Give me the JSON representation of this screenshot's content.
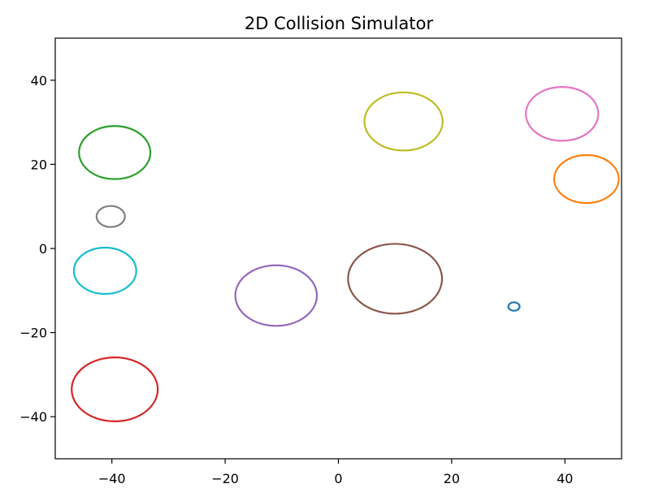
{
  "chart_data": {
    "type": "scatter",
    "title": "2D Collision Simulator",
    "xlabel": "",
    "ylabel": "",
    "xlim": [
      -50,
      50
    ],
    "ylim": [
      -50,
      50
    ],
    "grid": false,
    "xticks": [
      {
        "value": -40,
        "label": "−40"
      },
      {
        "value": -20,
        "label": "−20"
      },
      {
        "value": 0,
        "label": "0"
      },
      {
        "value": 20,
        "label": "20"
      },
      {
        "value": 40,
        "label": "40"
      }
    ],
    "yticks": [
      {
        "value": 40,
        "label": "40"
      },
      {
        "value": 20,
        "label": "20"
      },
      {
        "value": 0,
        "label": "0"
      },
      {
        "value": -20,
        "label": "−20"
      },
      {
        "value": -40,
        "label": "−40"
      }
    ],
    "circles": [
      {
        "color": "#1f77b4",
        "x": 31,
        "y": -13.8,
        "r": 1.0
      },
      {
        "color": "#ff7f0e",
        "x": 43.8,
        "y": 16.5,
        "r": 5.7
      },
      {
        "color": "#2ca02c",
        "x": -39.5,
        "y": 22.8,
        "r": 6.3
      },
      {
        "color": "#d62728",
        "x": -39.5,
        "y": -33.5,
        "r": 7.6
      },
      {
        "color": "#9467bd",
        "x": -11,
        "y": -11.2,
        "r": 7.2
      },
      {
        "color": "#8c564b",
        "x": 10,
        "y": -7.2,
        "r": 8.3
      },
      {
        "color": "#e377c2",
        "x": 39.5,
        "y": 32,
        "r": 6.4
      },
      {
        "color": "#7f7f7f",
        "x": -40.2,
        "y": 7.6,
        "r": 2.5
      },
      {
        "color": "#bcbd22",
        "x": 11.5,
        "y": 30.2,
        "r": 6.9
      },
      {
        "color": "#17becf",
        "x": -41.2,
        "y": -5.3,
        "r": 5.5
      }
    ]
  }
}
